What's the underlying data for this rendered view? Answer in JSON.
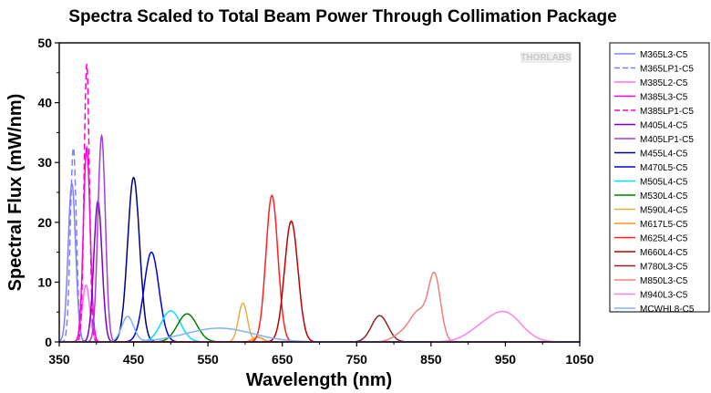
{
  "chart_data": {
    "type": "line",
    "title": "Spectra Scaled to Total Beam Power Through Collimation Package",
    "xlabel": "Wavelength (nm)",
    "ylabel": "Spectral Flux (mW/nm)",
    "xlim": [
      350,
      1050
    ],
    "ylim": [
      0,
      50
    ],
    "xticks": [
      350,
      450,
      550,
      650,
      750,
      850,
      950,
      1050
    ],
    "yticks": [
      0,
      10,
      20,
      30,
      40,
      50
    ],
    "grid": false,
    "legend_position": "right",
    "watermark": "THORLABS",
    "series": [
      {
        "name": "M365L3-C5",
        "color": "#8080ff",
        "dash": false,
        "peaks": [
          [
            367,
            26.5,
            5
          ]
        ]
      },
      {
        "name": "M365LP1-C5",
        "color": "#8080ff",
        "dash": true,
        "peaks": [
          [
            369,
            32.5,
            4
          ]
        ]
      },
      {
        "name": "M385L2-C5",
        "color": "#ff6ee6",
        "dash": false,
        "peaks": [
          [
            386,
            9.5,
            5
          ]
        ]
      },
      {
        "name": "M385L3-C5",
        "color": "#ff00d0",
        "dash": false,
        "peaks": [
          [
            387,
            32.5,
            4.5
          ]
        ]
      },
      {
        "name": "M385LP1-C5",
        "color": "#ff00d0",
        "dash": true,
        "peaks": [
          [
            387,
            46.5,
            3.5
          ]
        ]
      },
      {
        "name": "M405L4-C5",
        "color": "#8000c0",
        "dash": false,
        "peaks": [
          [
            402,
            23.5,
            5.5
          ]
        ]
      },
      {
        "name": "M405LP1-C5",
        "color": "#a040e0",
        "dash": false,
        "peaks": [
          [
            407,
            34.5,
            5
          ]
        ]
      },
      {
        "name": "M455L4-C5",
        "color": "#000080",
        "dash": false,
        "peaks": [
          [
            450,
            27.5,
            8
          ]
        ]
      },
      {
        "name": "M470L5-C5",
        "color": "#0000e0",
        "dash": false,
        "peaks": [
          [
            474,
            15,
            10
          ]
        ]
      },
      {
        "name": "M505L4-C5",
        "color": "#00e0ff",
        "dash": false,
        "peaks": [
          [
            500,
            5.2,
            13
          ]
        ]
      },
      {
        "name": "M530L4-C5",
        "color": "#008000",
        "dash": false,
        "peaks": [
          [
            522,
            4.7,
            13
          ]
        ]
      },
      {
        "name": "M590L4-C5",
        "color": "#e0b040",
        "dash": false,
        "peaks": [
          [
            597,
            6.5,
            6
          ]
        ]
      },
      {
        "name": "M617L5-C5",
        "color": "#ff9020",
        "dash": false,
        "peaks": [
          [
            617,
            0.8,
            7
          ]
        ]
      },
      {
        "name": "M625L4-C5",
        "color": "#ff2020",
        "dash": false,
        "peaks": [
          [
            636,
            24.5,
            8
          ]
        ]
      },
      {
        "name": "M660L4-C5",
        "color": "#c00000",
        "dash": false,
        "peaks": [
          [
            662,
            20.2,
            9
          ]
        ]
      },
      {
        "name": "M780L3-C5",
        "color": "#902030",
        "dash": false,
        "peaks": [
          [
            781,
            4.4,
            11
          ]
        ]
      },
      {
        "name": "M850L3-C5",
        "color": "#f08080",
        "dash": false,
        "peaks": [
          [
            855,
            10.5,
            8
          ],
          [
            834,
            5,
            12
          ],
          [
            810,
            1.2,
            12
          ]
        ]
      },
      {
        "name": "M940L3-C5",
        "color": "#ff80f0",
        "dash": false,
        "peaks": [
          [
            950,
            4.7,
            22
          ],
          [
            915,
            1.6,
            20
          ]
        ]
      },
      {
        "name": "MCWHL8-C5",
        "color": "#80b0ff",
        "dash": false,
        "peaks": [
          [
            442,
            4.2,
            8
          ],
          [
            565,
            2.3,
            45
          ]
        ]
      }
    ]
  }
}
